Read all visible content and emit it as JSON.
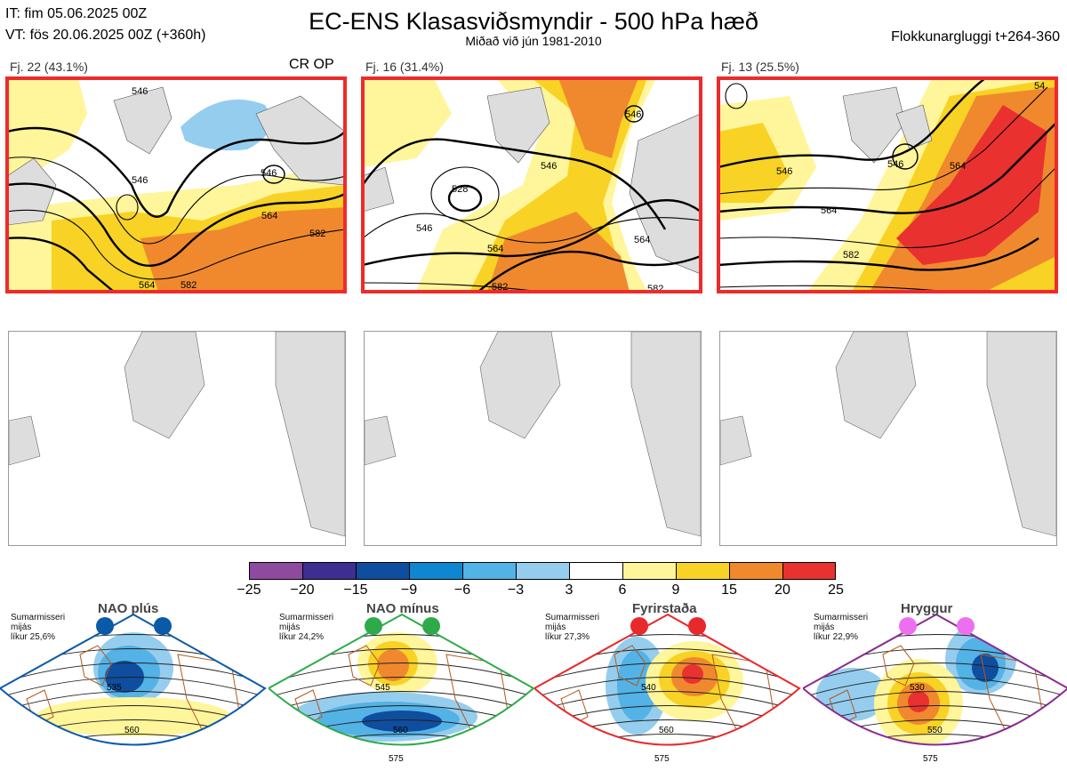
{
  "header": {
    "it": "IT: fim 05.06.2025 00Z",
    "vt": "VT: fös 20.06.2025 00Z  (+360h)",
    "title": "EC-ENS Klasasviðsmyndir - 500 hPa hæð",
    "subtitle": "Miðað við jún 1981-2010",
    "window": "Flokkunargluggi t+264-360"
  },
  "panels": [
    {
      "label": "Fj. 22 (43.1%)",
      "tag": "CR OP",
      "selected": true,
      "contours": [
        "546",
        "546",
        "546",
        "564",
        "582",
        "564",
        "582"
      ]
    },
    {
      "label": "Fj. 16 (31.4%)",
      "tag": "",
      "selected": true,
      "contours": [
        "528",
        "546",
        "546",
        "546",
        "564",
        "564",
        "582",
        "582"
      ]
    },
    {
      "label": "Fj. 13 (25.5%)",
      "tag": "",
      "selected": true,
      "contours": [
        "546",
        "546",
        "564",
        "564",
        "582",
        "54"
      ]
    }
  ],
  "chart_data": {
    "type": "heatmap",
    "title": "EC-ENS Klasasviðsmyndir - 500 hPa hæð",
    "subtitle": "Miðað við jún 1981-2010",
    "variable": "500 hPa height anomaly (dam)",
    "colorbar": {
      "ticks": [
        "−25",
        "−20",
        "−15",
        "−9",
        "−6",
        "−3",
        "3",
        "6",
        "9",
        "15",
        "20",
        "25"
      ],
      "bounds": [
        -25,
        -20,
        -15,
        -9,
        -6,
        -3,
        3,
        6,
        9,
        15,
        20,
        25
      ],
      "colors": [
        "#8e4a9e",
        "#3e2e8f",
        "#0f4d9e",
        "#0e86d0",
        "#53b2e6",
        "#95cdee",
        "#ffffff",
        "#fff59a",
        "#f8d224",
        "#f0892e",
        "#e93130",
        "#b3121c"
      ]
    },
    "clusters": [
      {
        "name": "Fj. 22",
        "members": 22,
        "percent": 43.1
      },
      {
        "name": "Fj. 16",
        "members": 16,
        "percent": 31.4
      },
      {
        "name": "Fj. 13",
        "members": 13,
        "percent": 25.5
      }
    ],
    "regimes": [
      {
        "name": "NAO plús",
        "season": "Sumarmisseri",
        "shown": "mijás",
        "likelihood": "líkur 25,6%",
        "percent": 25.6,
        "color": "#0b5aa8",
        "contours": [
          "535",
          "560"
        ]
      },
      {
        "name": "NAO mínus",
        "season": "Sumarmisseri",
        "shown": "mijás",
        "likelihood": "líkur 24,2%",
        "percent": 24.2,
        "color": "#2eaa4a",
        "contours": [
          "545",
          "560",
          "575"
        ]
      },
      {
        "name": "Fyrirstaða",
        "season": "Sumarmisseri",
        "shown": "mijás",
        "likelihood": "líkur 27,3%",
        "percent": 27.3,
        "color": "#e8282a",
        "contours": [
          "540",
          "560",
          "575"
        ]
      },
      {
        "name": "Hryggur",
        "season": "Sumarmisseri",
        "shown": "mijás",
        "likelihood": "líkur 22,9%",
        "percent": 22.9,
        "color": "#8a2b8f",
        "contours": [
          "530",
          "550",
          "575"
        ]
      }
    ]
  }
}
